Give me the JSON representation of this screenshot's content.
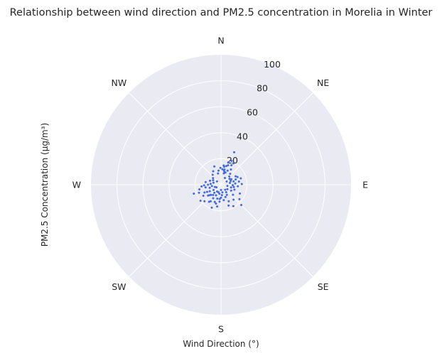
{
  "chart_data": {
    "type": "scatter",
    "projection": "polar",
    "title": "Relationship between wind direction and PM2.5 concentration in Morelia in Winter",
    "xlabel": "Wind Direction (°)",
    "ylabel": "PM2.5 Concentration (µg/m³)",
    "theta_zero": "N",
    "theta_direction": "clockwise",
    "direction_labels": [
      "N",
      "NE",
      "E",
      "SE",
      "S",
      "SW",
      "W",
      "NW"
    ],
    "rlim": [
      0,
      100
    ],
    "r_ticks": [
      "20",
      "40",
      "60",
      "80",
      "100"
    ],
    "grid": true,
    "background_color": "#eaeaf2",
    "grid_color": "#ffffff",
    "point_color": "#4169e1",
    "points": [
      {
        "direction": 22,
        "pm25": 27
      },
      {
        "direction": 24,
        "pm25": 20
      },
      {
        "direction": 18,
        "pm25": 18
      },
      {
        "direction": 16,
        "pm25": 15
      },
      {
        "direction": 20,
        "pm25": 16
      },
      {
        "direction": 10,
        "pm25": 14
      },
      {
        "direction": 8,
        "pm25": 15
      },
      {
        "direction": 13,
        "pm25": 12
      },
      {
        "direction": 28,
        "pm25": 17
      },
      {
        "direction": 12,
        "pm25": 11
      },
      {
        "direction": 16,
        "pm25": 10
      },
      {
        "direction": 25,
        "pm25": 12
      },
      {
        "direction": 33,
        "pm25": 14
      },
      {
        "direction": 30,
        "pm25": 19
      },
      {
        "direction": 14,
        "pm25": 9
      },
      {
        "direction": 20,
        "pm25": 10
      },
      {
        "direction": 5,
        "pm25": 12
      },
      {
        "direction": 358,
        "pm25": 13
      },
      {
        "direction": 40,
        "pm25": 11
      },
      {
        "direction": 45,
        "pm25": 9
      },
      {
        "direction": 62,
        "pm25": 9
      },
      {
        "direction": 70,
        "pm25": 12
      },
      {
        "direction": 65,
        "pm25": 14
      },
      {
        "direction": 75,
        "pm25": 10
      },
      {
        "direction": 72,
        "pm25": 16
      },
      {
        "direction": 60,
        "pm25": 13
      },
      {
        "direction": 80,
        "pm25": 14
      },
      {
        "direction": 85,
        "pm25": 11
      },
      {
        "direction": 88,
        "pm25": 16
      },
      {
        "direction": 55,
        "pm25": 8
      },
      {
        "direction": 68,
        "pm25": 8
      },
      {
        "direction": 78,
        "pm25": 7
      },
      {
        "direction": 95,
        "pm25": 13
      },
      {
        "direction": 92,
        "pm25": 9
      },
      {
        "direction": 100,
        "pm25": 10
      },
      {
        "direction": 105,
        "pm25": 8
      },
      {
        "direction": 110,
        "pm25": 11
      },
      {
        "direction": 120,
        "pm25": 9
      },
      {
        "direction": 130,
        "pm25": 12
      },
      {
        "direction": 140,
        "pm25": 15
      },
      {
        "direction": 150,
        "pm25": 9
      },
      {
        "direction": 155,
        "pm25": 14
      },
      {
        "direction": 160,
        "pm25": 10
      },
      {
        "direction": 145,
        "pm25": 7
      },
      {
        "direction": 170,
        "pm25": 12
      },
      {
        "direction": 175,
        "pm25": 8
      },
      {
        "direction": 180,
        "pm25": 10
      },
      {
        "direction": 185,
        "pm25": 13
      },
      {
        "direction": 190,
        "pm25": 7
      },
      {
        "direction": 195,
        "pm25": 11
      },
      {
        "direction": 200,
        "pm25": 14
      },
      {
        "direction": 205,
        "pm25": 9
      },
      {
        "direction": 210,
        "pm25": 12
      },
      {
        "direction": 215,
        "pm25": 16
      },
      {
        "direction": 220,
        "pm25": 8
      },
      {
        "direction": 225,
        "pm25": 11
      },
      {
        "direction": 230,
        "pm25": 13
      },
      {
        "direction": 235,
        "pm25": 7
      },
      {
        "direction": 240,
        "pm25": 10
      },
      {
        "direction": 245,
        "pm25": 14
      },
      {
        "direction": 250,
        "pm25": 18
      },
      {
        "direction": 252,
        "pm25": 22
      },
      {
        "direction": 255,
        "pm25": 9
      },
      {
        "direction": 260,
        "pm25": 12
      },
      {
        "direction": 262,
        "pm25": 7
      },
      {
        "direction": 265,
        "pm25": 15
      },
      {
        "direction": 270,
        "pm25": 10
      },
      {
        "direction": 275,
        "pm25": 8
      },
      {
        "direction": 280,
        "pm25": 12
      },
      {
        "direction": 285,
        "pm25": 6
      },
      {
        "direction": 290,
        "pm25": 9
      },
      {
        "direction": 300,
        "pm25": 7
      },
      {
        "direction": 310,
        "pm25": 8
      },
      {
        "direction": 320,
        "pm25": 10
      },
      {
        "direction": 330,
        "pm25": 12
      },
      {
        "direction": 340,
        "pm25": 15
      },
      {
        "direction": 345,
        "pm25": 9
      },
      {
        "direction": 350,
        "pm25": 11
      },
      {
        "direction": 135,
        "pm25": 22
      },
      {
        "direction": 128,
        "pm25": 18
      },
      {
        "direction": 115,
        "pm25": 16
      },
      {
        "direction": 150,
        "pm25": 19
      },
      {
        "direction": 160,
        "pm25": 17
      },
      {
        "direction": 125,
        "pm25": 6
      },
      {
        "direction": 200,
        "pm25": 6
      },
      {
        "direction": 238,
        "pm25": 16
      },
      {
        "direction": 225,
        "pm25": 18
      },
      {
        "direction": 210,
        "pm25": 6
      },
      {
        "direction": 170,
        "pm25": 6
      },
      {
        "direction": 100,
        "pm25": 5
      },
      {
        "direction": 60,
        "pm25": 5
      },
      {
        "direction": 30,
        "pm25": 6
      },
      {
        "direction": 250,
        "pm25": 5
      },
      {
        "direction": 310,
        "pm25": 4
      },
      {
        "direction": 140,
        "pm25": 5
      },
      {
        "direction": 240,
        "pm25": 4
      },
      {
        "direction": 180,
        "pm25": 4
      },
      {
        "direction": 190,
        "pm25": 17
      },
      {
        "direction": 202,
        "pm25": 19
      },
      {
        "direction": 212,
        "pm25": 15
      },
      {
        "direction": 232,
        "pm25": 20
      },
      {
        "direction": 228,
        "pm25": 12
      },
      {
        "direction": 218,
        "pm25": 10
      },
      {
        "direction": 243,
        "pm25": 12
      },
      {
        "direction": 258,
        "pm25": 17
      },
      {
        "direction": 268,
        "pm25": 13
      },
      {
        "direction": 195,
        "pm25": 15
      },
      {
        "direction": 185,
        "pm25": 11
      }
    ]
  }
}
